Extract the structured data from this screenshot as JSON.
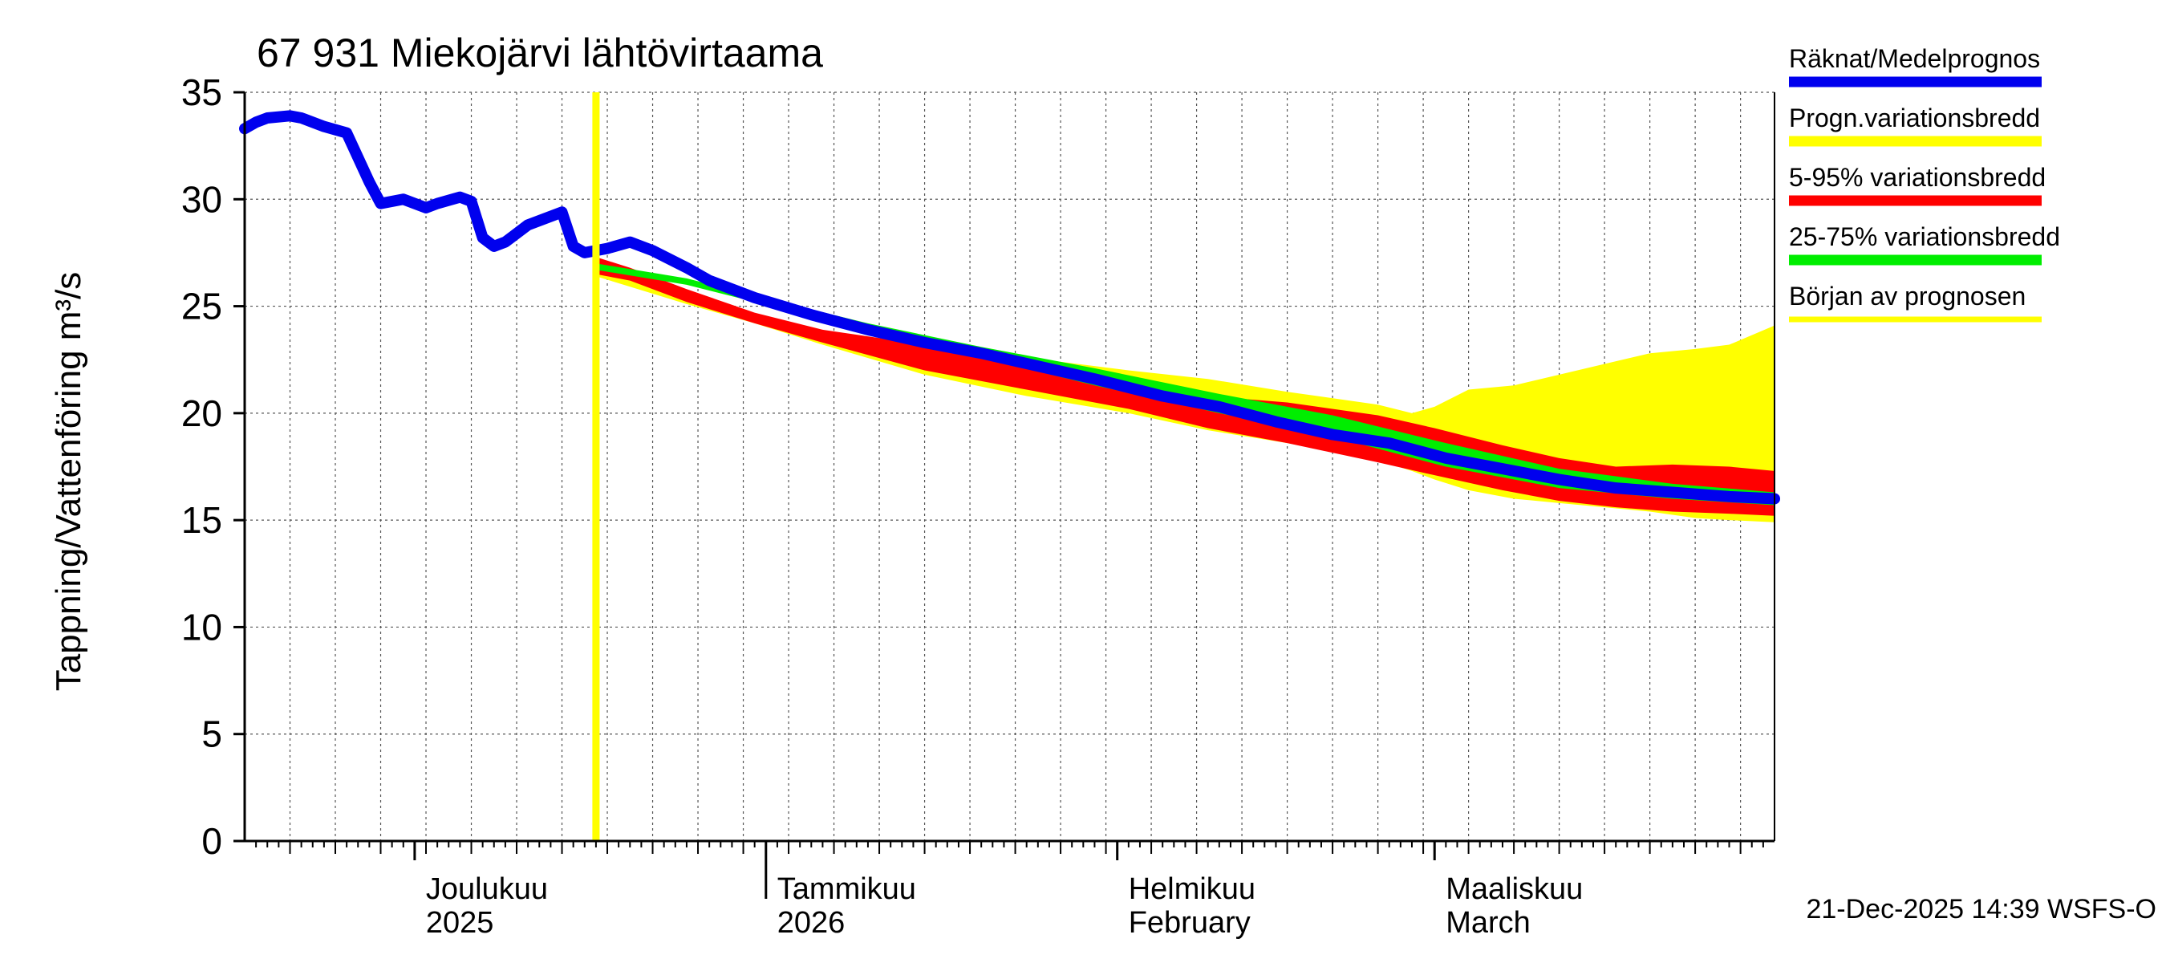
{
  "chart_data": {
    "type": "area",
    "title": "67 931 Miekojärvi lähtövirtaama",
    "ylabel": "Tappning/Vattenföring m³/s",
    "ylim": [
      0,
      35
    ],
    "yticks": [
      0,
      5,
      10,
      15,
      20,
      25,
      30,
      35
    ],
    "grid": true,
    "x_range": [
      "2025-11-16",
      "2026-03-31"
    ],
    "month_labels": [
      {
        "date": "2025-12-01",
        "line1": "Joulukuu",
        "line2": "2025"
      },
      {
        "date": "2026-01-01",
        "line1": "Tammikuu",
        "line2": "2026"
      },
      {
        "date": "2026-02-01",
        "line1": "Helmikuu",
        "line2": "February"
      },
      {
        "date": "2026-03-01",
        "line1": "Maaliskuu",
        "line2": "March"
      }
    ],
    "forecast_start": "2025-12-17",
    "legend": {
      "placement": "right",
      "entries": [
        {
          "label": "Räknat/Medelprognos",
          "color": "#0000ee"
        },
        {
          "label": "Progn.variationsbredd",
          "color": "#ffff00"
        },
        {
          "label": "5-95% variationsbredd",
          "color": "#ff0000"
        },
        {
          "label": "25-75% variationsbredd",
          "color": "#00ee00"
        },
        {
          "label": "Början av prognosen",
          "color": "#ffff00"
        }
      ]
    },
    "series": [
      {
        "name": "Räknat/Medelprognos",
        "color": "#0000ee",
        "points": [
          [
            "2025-11-16",
            33.3
          ],
          [
            "2025-11-17",
            33.6
          ],
          [
            "2025-11-18",
            33.8
          ],
          [
            "2025-11-20",
            33.9
          ],
          [
            "2025-11-21",
            33.8
          ],
          [
            "2025-11-23",
            33.4
          ],
          [
            "2025-11-25",
            33.1
          ],
          [
            "2025-11-27",
            30.8
          ],
          [
            "2025-11-28",
            29.8
          ],
          [
            "2025-11-30",
            30.0
          ],
          [
            "2025-12-02",
            29.6
          ],
          [
            "2025-12-03",
            29.8
          ],
          [
            "2025-12-05",
            30.1
          ],
          [
            "2025-12-06",
            29.9
          ],
          [
            "2025-12-07",
            28.2
          ],
          [
            "2025-12-08",
            27.8
          ],
          [
            "2025-12-09",
            28.0
          ],
          [
            "2025-12-11",
            28.8
          ],
          [
            "2025-12-14",
            29.4
          ],
          [
            "2025-12-15",
            27.8
          ],
          [
            "2025-12-16",
            27.5
          ],
          [
            "2025-12-18",
            27.7
          ],
          [
            "2025-12-20",
            28.0
          ],
          [
            "2025-12-22",
            27.6
          ],
          [
            "2025-12-25",
            26.8
          ],
          [
            "2025-12-27",
            26.2
          ],
          [
            "2025-12-31",
            25.4
          ],
          [
            "2026-01-05",
            24.6
          ],
          [
            "2026-01-10",
            23.9
          ],
          [
            "2026-01-15",
            23.3
          ],
          [
            "2026-01-20",
            22.8
          ],
          [
            "2026-01-25",
            22.2
          ],
          [
            "2026-01-30",
            21.6
          ],
          [
            "2026-02-05",
            20.8
          ],
          [
            "2026-02-10",
            20.3
          ],
          [
            "2026-02-15",
            19.6
          ],
          [
            "2026-02-20",
            19.0
          ],
          [
            "2026-02-25",
            18.6
          ],
          [
            "2026-03-02",
            17.9
          ],
          [
            "2026-03-07",
            17.4
          ],
          [
            "2026-03-12",
            16.9
          ],
          [
            "2026-03-17",
            16.5
          ],
          [
            "2026-03-22",
            16.3
          ],
          [
            "2026-03-27",
            16.1
          ],
          [
            "2026-03-31",
            16.0
          ]
        ]
      }
    ],
    "bands": [
      {
        "name": "Progn.variationsbredd",
        "color": "#ffff00",
        "x": [
          "2025-12-17",
          "2025-12-25",
          "2025-12-31",
          "2026-01-06",
          "2026-01-15",
          "2026-01-24",
          "2026-02-02",
          "2026-02-09",
          "2026-02-16",
          "2026-02-24",
          "2026-02-27",
          "2026-03-01",
          "2026-03-04",
          "2026-03-08",
          "2026-03-12",
          "2026-03-16",
          "2026-03-20",
          "2026-03-24",
          "2026-03-27",
          "2026-03-31"
        ],
        "upper": [
          27.2,
          25.5,
          24.6,
          23.6,
          23.0,
          22.6,
          22.0,
          21.6,
          21.0,
          20.4,
          20.0,
          20.3,
          21.1,
          21.3,
          21.8,
          22.3,
          22.8,
          23.0,
          23.2,
          24.1
        ],
        "lower": [
          26.4,
          25.1,
          24.2,
          23.2,
          21.8,
          20.8,
          20.0,
          19.2,
          18.6,
          17.8,
          17.3,
          16.9,
          16.4,
          16.0,
          15.8,
          15.6,
          15.4,
          15.1,
          15.0,
          14.9
        ]
      },
      {
        "name": "5-95% variationsbredd",
        "color": "#ff0000",
        "x": [
          "2025-12-17",
          "2025-12-20",
          "2025-12-25",
          "2025-12-31",
          "2026-01-06",
          "2026-01-15",
          "2026-01-24",
          "2026-02-02",
          "2026-02-09",
          "2026-02-16",
          "2026-02-24",
          "2026-03-01",
          "2026-03-07",
          "2026-03-12",
          "2026-03-17",
          "2026-03-22",
          "2026-03-27",
          "2026-03-31"
        ],
        "upper": [
          27.3,
          26.8,
          25.8,
          24.7,
          23.9,
          23.2,
          22.5,
          21.5,
          20.8,
          20.5,
          19.9,
          19.3,
          18.5,
          17.9,
          17.5,
          17.6,
          17.5,
          17.3
        ],
        "lower": [
          26.5,
          26.2,
          25.2,
          24.2,
          23.3,
          22.0,
          21.1,
          20.2,
          19.3,
          18.6,
          17.7,
          17.1,
          16.4,
          15.9,
          15.6,
          15.4,
          15.3,
          15.2
        ]
      },
      {
        "name": "25-75% variationsbredd",
        "color": "#00ee00",
        "x": [
          "2025-12-17",
          "2025-12-25",
          "2025-12-31",
          "2026-01-10",
          "2026-01-20",
          "2026-01-30",
          "2026-02-10",
          "2026-02-20",
          "2026-03-02",
          "2026-03-12",
          "2026-03-22",
          "2026-03-31"
        ],
        "upper": [
          27.0,
          26.3,
          25.5,
          24.2,
          23.1,
          22.1,
          20.9,
          19.9,
          18.6,
          17.4,
          16.7,
          16.3
        ],
        "lower": [
          26.7,
          26.0,
          25.2,
          23.8,
          22.6,
          21.3,
          20.0,
          18.9,
          17.5,
          16.5,
          16.0,
          15.7
        ]
      }
    ],
    "footer": "21-Dec-2025 14:39 WSFS-O"
  }
}
